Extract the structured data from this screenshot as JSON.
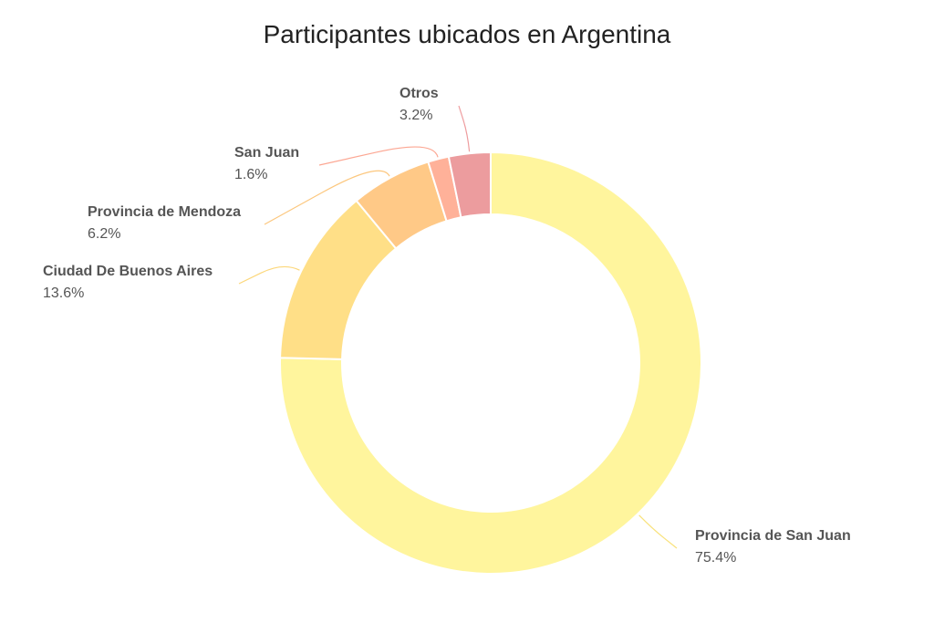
{
  "chart_data": {
    "type": "pie",
    "title": "Participantes ubicados en Argentina",
    "donut": true,
    "slices": [
      {
        "label": "Provincia de San Juan",
        "value": 75.4,
        "value_label": "75.4%",
        "color": "#fff59d",
        "leader_color": "#f9e27a"
      },
      {
        "label": "Ciudad De Buenos Aires",
        "value": 13.6,
        "value_label": "13.6%",
        "color": "#ffdf87",
        "leader_color": "#fcd77a"
      },
      {
        "label": "Provincia de Mendoza",
        "value": 6.2,
        "value_label": "6.2%",
        "color": "#ffc987",
        "leader_color": "#fcc77e"
      },
      {
        "label": "San Juan",
        "value": 1.6,
        "value_label": "1.6%",
        "color": "#ffb199",
        "leader_color": "#fca793"
      },
      {
        "label": "Otros",
        "value": 3.2,
        "value_label": "3.2%",
        "color": "#ec9c9e",
        "leader_color": "#ee9c9e"
      }
    ]
  }
}
